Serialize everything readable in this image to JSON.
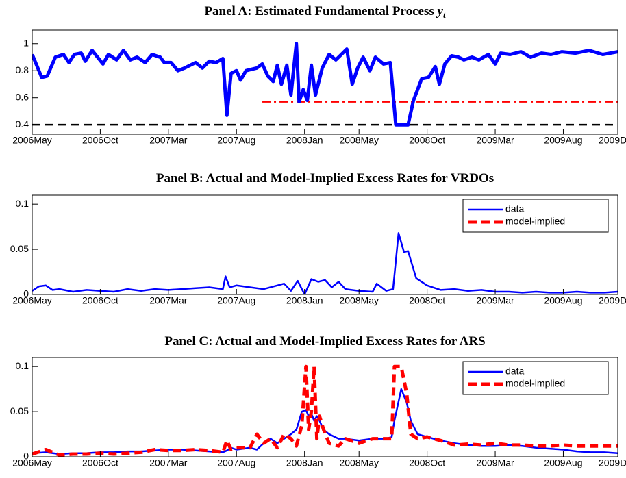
{
  "chart_data": [
    {
      "type": "line",
      "title": "Panel A: Estimated Fundamental Process",
      "title_symbol": "y",
      "title_subscript": "t",
      "xlim": [
        0,
        43
      ],
      "xticks": [
        {
          "value": 0,
          "label": "2006May"
        },
        {
          "value": 5,
          "label": "2006Oct"
        },
        {
          "value": 10,
          "label": "2007Mar"
        },
        {
          "value": 15,
          "label": "2007Aug"
        },
        {
          "value": 20,
          "label": "2008Jan"
        },
        {
          "value": 24,
          "label": "2008May"
        },
        {
          "value": 29,
          "label": "2008Oct"
        },
        {
          "value": 34,
          "label": "2009Mar"
        },
        {
          "value": 39,
          "label": "2009Aug"
        },
        {
          "value": 43,
          "label": "2009Dec"
        }
      ],
      "ylim": [
        0.33,
        1.1
      ],
      "yticks": [
        0.4,
        0.6,
        0.8,
        1
      ],
      "x": [
        0,
        0.7,
        1.1,
        1.7,
        2.3,
        2.7,
        3.1,
        3.6,
        3.9,
        4.4,
        5.2,
        5.6,
        6.2,
        6.7,
        7.2,
        7.7,
        8.3,
        8.8,
        9.4,
        9.7,
        10.2,
        10.7,
        11.2,
        12.0,
        12.5,
        13.0,
        13.5,
        14.0,
        14.3,
        14.6,
        15.0,
        15.3,
        15.7,
        16.5,
        16.9,
        17.3,
        17.7,
        18.0,
        18.3,
        18.7,
        19.0,
        19.4,
        19.6,
        19.9,
        20.2,
        20.5,
        20.8,
        21.3,
        21.8,
        22.3,
        22.8,
        23.1,
        23.5,
        23.9,
        24.3,
        24.8,
        25.2,
        25.8,
        26.3,
        26.7,
        27.6,
        28.0,
        28.6,
        29.1,
        29.6,
        29.9,
        30.3,
        30.8,
        31.3,
        31.7,
        32.3,
        32.8,
        33.5,
        34.0,
        34.4,
        35.1,
        35.9,
        36.6,
        37.4,
        38.1,
        38.9,
        39.9,
        40.9,
        41.9,
        43.0
      ],
      "series": [
        {
          "color": "#0000ff",
          "values": [
            0.92,
            0.75,
            0.76,
            0.9,
            0.92,
            0.86,
            0.92,
            0.93,
            0.87,
            0.95,
            0.85,
            0.92,
            0.88,
            0.95,
            0.88,
            0.9,
            0.86,
            0.92,
            0.9,
            0.86,
            0.86,
            0.8,
            0.82,
            0.86,
            0.82,
            0.87,
            0.86,
            0.89,
            0.47,
            0.78,
            0.8,
            0.73,
            0.8,
            0.82,
            0.85,
            0.76,
            0.72,
            0.84,
            0.7,
            0.84,
            0.62,
            1.0,
            0.57,
            0.66,
            0.58,
            0.84,
            0.62,
            0.82,
            0.92,
            0.88,
            0.93,
            0.96,
            0.7,
            0.82,
            0.9,
            0.8,
            0.9,
            0.85,
            0.86,
            0.4,
            0.4,
            0.58,
            0.74,
            0.75,
            0.83,
            0.7,
            0.85,
            0.91,
            0.9,
            0.88,
            0.9,
            0.88,
            0.92,
            0.85,
            0.93,
            0.92,
            0.94,
            0.9,
            0.93,
            0.92,
            0.94,
            0.93,
            0.95,
            0.92,
            0.94
          ]
        }
      ],
      "hlines": [
        {
          "value": 0.4,
          "color": "#000000",
          "style": "dashed"
        },
        {
          "value": 0.57,
          "from": 16.9,
          "color": "#ff0000",
          "style": "dashdot"
        }
      ]
    },
    {
      "type": "line",
      "title": "Panel B: Actual and Model-Implied Excess Rates for VRDOs",
      "xlim": [
        0,
        43
      ],
      "xticks": [
        {
          "value": 0,
          "label": "2006May"
        },
        {
          "value": 5,
          "label": "2006Oct"
        },
        {
          "value": 10,
          "label": "2007Mar"
        },
        {
          "value": 15,
          "label": "2007Aug"
        },
        {
          "value": 20,
          "label": "2008Jan"
        },
        {
          "value": 24,
          "label": "2008May"
        },
        {
          "value": 29,
          "label": "2008Oct"
        },
        {
          "value": 34,
          "label": "2009Mar"
        },
        {
          "value": 39,
          "label": "2009Aug"
        },
        {
          "value": 43,
          "label": "2009Dec"
        }
      ],
      "ylim": [
        0,
        0.11
      ],
      "yticks": [
        0,
        0.05,
        0.1
      ],
      "legend": "northeast",
      "x": [
        0,
        0.5,
        1,
        1.5,
        2,
        3,
        4,
        5,
        6,
        7,
        8,
        9,
        10,
        11,
        12,
        13,
        14,
        14.2,
        14.5,
        15,
        16,
        17,
        18,
        18.5,
        19,
        19.5,
        20,
        20.5,
        21,
        21.5,
        22,
        22.5,
        23,
        24,
        25,
        25.3,
        26,
        26.5,
        26.9,
        27.3,
        27.6,
        28.2,
        29,
        30,
        31,
        32,
        33,
        34,
        35,
        36,
        37,
        38,
        39,
        40,
        41,
        42,
        43
      ],
      "series": [
        {
          "name": "data",
          "color": "#0000ff",
          "values": [
            0.004,
            0.009,
            0.01,
            0.005,
            0.006,
            0.003,
            0.005,
            0.004,
            0.003,
            0.006,
            0.004,
            0.006,
            0.005,
            0.006,
            0.007,
            0.008,
            0.006,
            0.02,
            0.008,
            0.01,
            0.008,
            0.006,
            0.01,
            0.012,
            0.004,
            0.015,
            0.0,
            0.017,
            0.014,
            0.016,
            0.008,
            0.014,
            0.006,
            0.004,
            0.003,
            0.012,
            0.004,
            0.006,
            0.068,
            0.047,
            0.048,
            0.018,
            0.01,
            0.005,
            0.006,
            0.004,
            0.005,
            0.003,
            0.003,
            0.002,
            0.003,
            0.002,
            0.002,
            0.003,
            0.002,
            0.002,
            0.003
          ]
        },
        {
          "name": "model-implied",
          "color": "#ff0000"
        }
      ]
    },
    {
      "type": "line",
      "title": "Panel C: Actual and Model-Implied Excess Rates for ARS",
      "xlim": [
        0,
        43
      ],
      "xticks": [
        {
          "value": 0,
          "label": "2006May"
        },
        {
          "value": 5,
          "label": "2006Oct"
        },
        {
          "value": 10,
          "label": "2007Mar"
        },
        {
          "value": 15,
          "label": "2007Aug"
        },
        {
          "value": 20,
          "label": "2008Jan"
        },
        {
          "value": 24,
          "label": "2008May"
        },
        {
          "value": 29,
          "label": "2008Oct"
        },
        {
          "value": 34,
          "label": "2009Mar"
        },
        {
          "value": 39,
          "label": "2009Aug"
        },
        {
          "value": 43,
          "label": "2009Dec"
        }
      ],
      "ylim": [
        0,
        0.11
      ],
      "yticks": [
        0,
        0.05,
        0.1
      ],
      "legend": "northeast",
      "x": [
        0,
        1,
        2,
        3,
        4,
        5,
        6,
        7,
        8,
        9,
        10,
        11,
        12,
        13,
        14,
        14.3,
        14.6,
        15,
        16,
        16.5,
        17,
        17.5,
        18,
        18.5,
        19,
        19.4,
        19.8,
        20.1,
        20.3,
        20.5,
        20.7,
        20.9,
        21.1,
        21.4,
        21.8,
        22.5,
        23,
        24,
        25,
        26,
        26.4,
        26.6,
        27.1,
        27.5,
        27.8,
        28.3,
        29,
        30,
        31,
        32,
        33,
        34,
        35,
        36,
        37,
        38,
        39,
        40,
        41,
        42,
        43
      ],
      "series": [
        {
          "name": "data",
          "color": "#0000ff",
          "values": [
            0.004,
            0.005,
            0.003,
            0.004,
            0.004,
            0.005,
            0.005,
            0.006,
            0.006,
            0.007,
            0.008,
            0.008,
            0.007,
            0.006,
            0.005,
            0.007,
            0.01,
            0.008,
            0.01,
            0.008,
            0.015,
            0.02,
            0.015,
            0.02,
            0.025,
            0.03,
            0.05,
            0.052,
            0.045,
            0.048,
            0.04,
            0.045,
            0.04,
            0.03,
            0.025,
            0.02,
            0.02,
            0.018,
            0.02,
            0.02,
            0.022,
            0.04,
            0.075,
            0.06,
            0.04,
            0.025,
            0.022,
            0.018,
            0.015,
            0.013,
            0.012,
            0.012,
            0.013,
            0.012,
            0.01,
            0.009,
            0.008,
            0.006,
            0.005,
            0.005,
            0.004
          ]
        },
        {
          "name": "model-implied",
          "color": "#ff0000",
          "values": [
            0.003,
            0.008,
            0.002,
            0.003,
            0.003,
            0.004,
            0.003,
            0.004,
            0.005,
            0.008,
            0.007,
            0.007,
            0.008,
            0.007,
            0.005,
            0.018,
            0.008,
            0.01,
            0.01,
            0.025,
            0.015,
            0.02,
            0.01,
            0.025,
            0.02,
            0.012,
            0.035,
            0.1,
            0.03,
            0.05,
            0.1,
            0.02,
            0.045,
            0.03,
            0.015,
            0.012,
            0.02,
            0.015,
            0.02,
            0.02,
            0.02,
            0.1,
            0.1,
            0.07,
            0.025,
            0.02,
            0.022,
            0.018,
            0.013,
            0.014,
            0.013,
            0.015,
            0.013,
            0.013,
            0.012,
            0.012,
            0.013,
            0.012,
            0.012,
            0.012,
            0.012
          ]
        }
      ]
    }
  ]
}
